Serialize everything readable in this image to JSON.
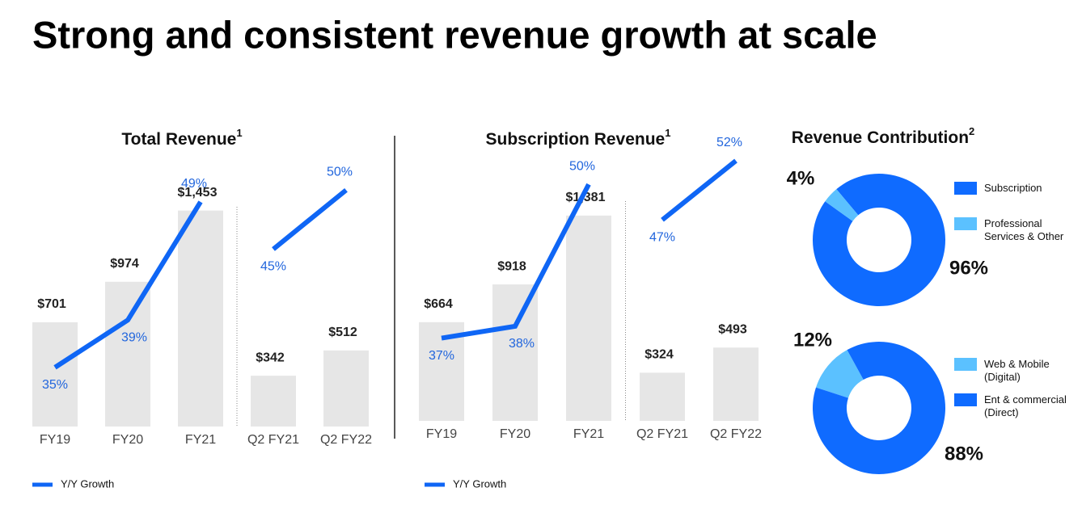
{
  "title": "Strong and consistent revenue growth at scale",
  "chart_data": [
    {
      "type": "bar",
      "title": "Total Revenue",
      "title_note": "1",
      "categories": [
        "FY19",
        "FY20",
        "FY21",
        "Q2 FY21",
        "Q2 FY22"
      ],
      "values": [
        701,
        974,
        1453,
        342,
        512
      ],
      "value_labels": [
        "$701",
        "$974",
        "$1,453",
        "$342",
        "$512"
      ],
      "color": "#e6e6e6",
      "ylim": [
        0,
        1750
      ],
      "divider_after": 2,
      "y2lim": [
        30,
        52
      ],
      "series": [
        {
          "name": "Y/Y Growth",
          "color": "#0f66f5",
          "axis": "y2",
          "values": [
            35,
            39,
            49,
            45,
            50
          ],
          "value_labels": [
            "35%",
            "39%",
            "49%",
            "45%",
            "50%"
          ]
        }
      ]
    },
    {
      "type": "bar",
      "title": "Subscription Revenue",
      "title_note": "1",
      "categories": [
        "FY19",
        "FY20",
        "FY21",
        "Q2 FY21",
        "Q2 FY22"
      ],
      "values": [
        664,
        918,
        1381,
        324,
        493
      ],
      "value_labels": [
        "$664",
        "$918",
        "$1,381",
        "$324",
        "$493"
      ],
      "color": "#e6e6e6",
      "ylim": [
        0,
        1750
      ],
      "divider_after": 2,
      "y2lim": [
        30,
        52
      ],
      "series": [
        {
          "name": "Y/Y Growth",
          "color": "#0f66f5",
          "axis": "y2",
          "values": [
            37,
            38,
            50,
            47,
            52
          ],
          "value_labels": [
            "37%",
            "38%",
            "50%",
            "47%",
            "52%"
          ]
        }
      ]
    },
    {
      "type": "pie",
      "title": "Revenue Contribution",
      "title_note": "2",
      "categories": [
        "Subscription",
        "Professional Services & Other"
      ],
      "values": [
        96,
        4
      ],
      "value_labels": [
        "96%",
        "4%"
      ],
      "colors": [
        "#0f6bff",
        "#5bc1ff"
      ]
    },
    {
      "type": "pie",
      "categories": [
        "Web & Mobile (Digital)",
        "Ent & commercial (Direct)"
      ],
      "values": [
        12,
        88
      ],
      "value_labels": [
        "12%",
        "88%"
      ],
      "colors": [
        "#5bc1ff",
        "#0f6bff"
      ]
    }
  ]
}
